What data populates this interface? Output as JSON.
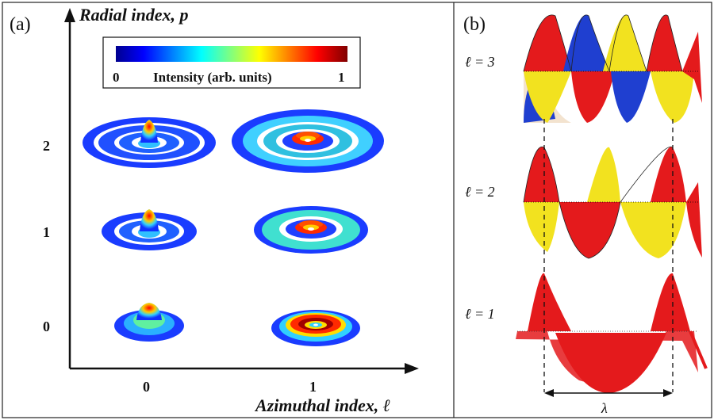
{
  "panel_a": {
    "label": "(a)",
    "y_axis_label": "Radial index, p",
    "x_axis_label": "Azimuthal index, ℓ",
    "y_ticks": [
      "0",
      "1",
      "2"
    ],
    "x_ticks": [
      "0",
      "1"
    ],
    "colorbar": {
      "min_label": "0",
      "max_label": "1",
      "title": "Intensity (arb. units)",
      "colormap": "jet",
      "colors": [
        "#00008f",
        "#0000ff",
        "#00ffff",
        "#ffff00",
        "#ff0000",
        "#800000"
      ]
    },
    "modes": [
      {
        "p": 0,
        "l": 0
      },
      {
        "p": 1,
        "l": 0
      },
      {
        "p": 2,
        "l": 0
      },
      {
        "p": 0,
        "l": 1
      },
      {
        "p": 1,
        "l": 1
      },
      {
        "p": 2,
        "l": 1
      }
    ]
  },
  "panel_b": {
    "label": "(b)",
    "rows": [
      {
        "label": "ℓ = 3",
        "colors": [
          "#e41a1c",
          "#1f3fd0",
          "#f2e21f"
        ]
      },
      {
        "label": "ℓ = 2",
        "colors": [
          "#e41a1c",
          "#f2e21f"
        ]
      },
      {
        "label": "ℓ = 1",
        "colors": [
          "#e41a1c"
        ]
      }
    ],
    "wavelength_label": "λ"
  }
}
